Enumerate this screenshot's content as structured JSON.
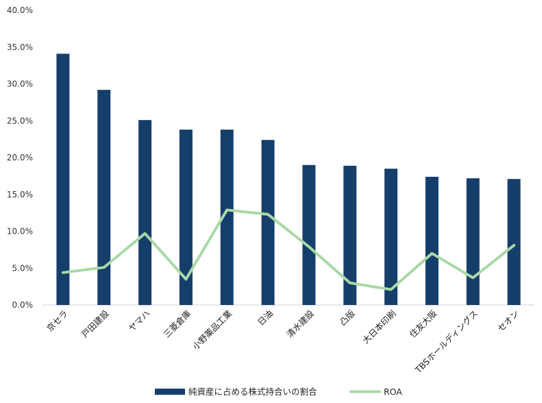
{
  "chart_data": {
    "type": "bar",
    "categories": [
      "京セラ",
      "戸田建設",
      "ヤマハ",
      "三菱倉庫",
      "小野薬品工業",
      "日油",
      "清水建設",
      "凸版",
      "大日本印刷",
      "住友大阪",
      "TBSホールディングス",
      "セオン"
    ],
    "series": [
      {
        "name": "純資産に占める株式持合いの割合",
        "type": "bar",
        "color": "#163e6b",
        "values": [
          34.1,
          29.2,
          25.1,
          23.8,
          23.8,
          22.4,
          19.0,
          18.9,
          18.5,
          17.4,
          17.2,
          17.1
        ]
      },
      {
        "name": "ROA",
        "type": "line",
        "color": "#a8d8a6",
        "values": [
          4.4,
          5.1,
          9.7,
          3.5,
          12.9,
          12.3,
          7.9,
          3.0,
          2.1,
          7.0,
          3.7,
          8.1
        ]
      }
    ],
    "y_ticks": [
      "0.0%",
      "5.0%",
      "10.0%",
      "15.0%",
      "20.0%",
      "25.0%",
      "30.0%",
      "35.0%",
      "40.0%"
    ],
    "ylim": [
      0,
      40
    ],
    "grid": false,
    "legend_position": "bottom"
  }
}
